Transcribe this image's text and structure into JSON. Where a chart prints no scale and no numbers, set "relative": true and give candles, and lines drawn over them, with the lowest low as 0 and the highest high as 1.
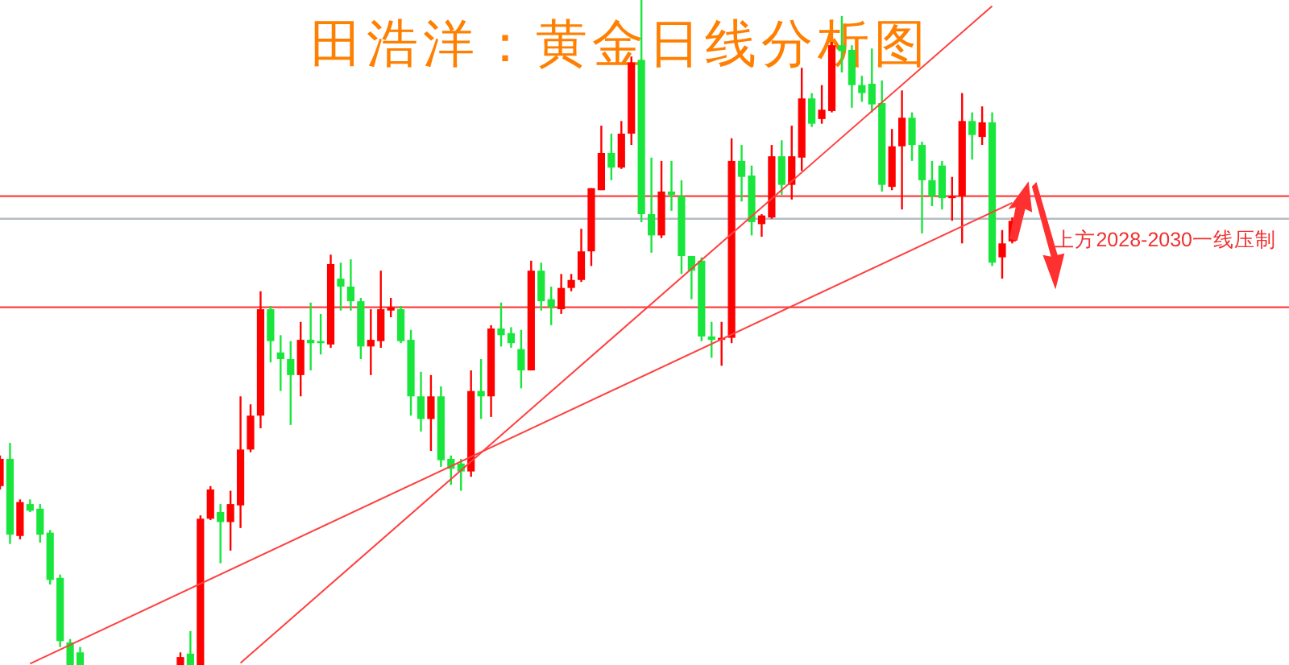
{
  "chart_data": {
    "type": "candlestick",
    "title": "田浩洋：黄金日线分析图",
    "relative": true,
    "categories": [
      null,
      null,
      null,
      null,
      null,
      null,
      null,
      null,
      null,
      null,
      null,
      null,
      null,
      null,
      null,
      null,
      null,
      null,
      null,
      null,
      null,
      null,
      null,
      null,
      null,
      null,
      null,
      null,
      null,
      null,
      null,
      null,
      null,
      null,
      null,
      null,
      null,
      null,
      null,
      null,
      null,
      null,
      null,
      null,
      null,
      null,
      null,
      null,
      null,
      null,
      null,
      null,
      null,
      null,
      null,
      null,
      null,
      null,
      null,
      null,
      null,
      null,
      null,
      null,
      null,
      null,
      null,
      null,
      null,
      null,
      null,
      null,
      null,
      null,
      null,
      null,
      null,
      null,
      null,
      null,
      null,
      null,
      null,
      null,
      null,
      null,
      null,
      null,
      null,
      null,
      null,
      null,
      null,
      null,
      null,
      null,
      null,
      null,
      null,
      null,
      null,
      null
    ],
    "ohlc": [
      [
        0.269,
        0.315,
        0.264,
        0.31
      ],
      [
        0.31,
        0.334,
        0.182,
        0.196
      ],
      [
        0.194,
        0.249,
        0.189,
        0.245
      ],
      [
        0.242,
        0.249,
        0.23,
        0.232
      ],
      [
        0.235,
        0.242,
        0.184,
        0.196
      ],
      [
        0.199,
        0.203,
        0.121,
        0.128
      ],
      [
        0.131,
        0.136,
        0.027,
        0.036
      ],
      [
        0.034,
        0.039,
        0,
        0
      ],
      [
        0.019,
        0.027,
        0,
        0
      ],
      null,
      null,
      null,
      null,
      null,
      null,
      null,
      null,
      null,
      [
        0,
        0.019,
        0,
        0.012
      ],
      [
        0.017,
        0.051,
        0,
        0
      ],
      [
        0,
        0.225,
        0,
        0.22
      ],
      [
        0.22,
        0.269,
        0.218,
        0.264
      ],
      [
        0.23,
        0.242,
        0.153,
        0.215
      ],
      [
        0.215,
        0.262,
        0.172,
        0.242
      ],
      [
        0.24,
        0.404,
        0.206,
        0.324
      ],
      [
        0.324,
        0.392,
        0.32,
        0.375
      ],
      [
        0.375,
        0.562,
        0.356,
        0.535
      ],
      [
        0.535,
        0.54,
        0.455,
        0.487
      ],
      [
        0.47,
        0.496,
        0.412,
        0.46
      ],
      [
        0.46,
        0.487,
        0.361,
        0.436
      ],
      [
        0.436,
        0.516,
        0.404,
        0.489
      ],
      [
        0.489,
        0.545,
        0.443,
        0.484
      ],
      [
        0.487,
        0.528,
        0.467,
        0.484
      ],
      [
        0.482,
        0.617,
        0.477,
        0.603
      ],
      [
        0.581,
        0.605,
        0.533,
        0.569
      ],
      [
        0.569,
        0.61,
        0.533,
        0.547
      ],
      [
        0.547,
        0.552,
        0.46,
        0.479
      ],
      [
        0.479,
        0.535,
        0.436,
        0.489
      ],
      [
        0.487,
        0.593,
        0.477,
        0.535
      ],
      [
        0.533,
        0.552,
        0.523,
        0.538
      ],
      [
        0.535,
        0.54,
        0.484,
        0.487
      ],
      [
        0.489,
        0.504,
        0.375,
        0.404
      ],
      [
        0.404,
        0.441,
        0.351,
        0.37
      ],
      [
        0.37,
        0.436,
        0.322,
        0.404
      ],
      [
        0.404,
        0.419,
        0.298,
        0.308
      ],
      [
        0.31,
        0.315,
        0.271,
        0.295
      ],
      [
        0.303,
        0.31,
        0.262,
        0.291
      ],
      [
        0.291,
        0.443,
        0.283,
        0.412
      ],
      [
        0.412,
        0.46,
        0.37,
        0.404
      ],
      [
        0.404,
        0.511,
        0.373,
        0.506
      ],
      [
        0.506,
        0.545,
        0.479,
        0.496
      ],
      [
        0.499,
        0.508,
        0.477,
        0.484
      ],
      [
        0.475,
        0.504,
        0.416,
        0.443
      ],
      [
        0.443,
        0.608,
        0.443,
        0.593
      ],
      [
        0.593,
        0.605,
        0.533,
        0.547
      ],
      [
        0.55,
        0.569,
        0.511,
        0.538
      ],
      [
        0.535,
        0.588,
        0.528,
        0.567
      ],
      [
        0.567,
        0.588,
        0.562,
        0.579
      ],
      [
        0.579,
        0.656,
        0.576,
        0.622
      ],
      [
        0.622,
        0.717,
        0.6,
        0.717
      ],
      [
        0.714,
        0.811,
        0.714,
        0.77
      ],
      [
        0.77,
        0.799,
        0.729,
        0.748
      ],
      [
        0.748,
        0.818,
        0.746,
        0.799
      ],
      [
        0.799,
        0.915,
        0.782,
        0.906
      ],
      [
        0.91,
        1,
        0.666,
        0.678
      ],
      [
        0.678,
        0.763,
        0.62,
        0.646
      ],
      [
        0.646,
        0.758,
        0.642,
        0.712
      ],
      [
        0.712,
        0.758,
        0.683,
        0.707
      ],
      [
        0.705,
        0.729,
        0.588,
        0.615
      ],
      [
        0.615,
        0.615,
        0.55,
        0.593
      ],
      [
        0.608,
        0.613,
        0.487,
        0.494
      ],
      [
        0.494,
        0.516,
        0.462,
        0.489
      ],
      [
        0.489,
        0.516,
        0.45,
        0.492
      ],
      [
        0.492,
        0.792,
        0.484,
        0.758
      ],
      [
        0.758,
        0.782,
        0.697,
        0.734
      ],
      [
        0.736,
        0.751,
        0.646,
        0.666
      ],
      [
        0.663,
        0.678,
        0.644,
        0.676
      ],
      [
        0.673,
        0.782,
        0.671,
        0.765
      ],
      [
        0.765,
        0.789,
        0.707,
        0.722
      ],
      [
        0.722,
        0.811,
        0.7,
        0.765
      ],
      [
        0.763,
        0.898,
        0.743,
        0.852
      ],
      [
        0.852,
        0.86,
        0.809,
        0.814
      ],
      [
        0.821,
        0.872,
        0.814,
        0.835
      ],
      [
        0.833,
        0.937,
        0.831,
        0.932
      ],
      [
        0.932,
        0.976,
        0.891,
        0.923
      ],
      [
        0.925,
        0.932,
        0.838,
        0.872
      ],
      [
        0.872,
        0.886,
        0.847,
        0.86
      ],
      [
        0.874,
        0.927,
        0.831,
        0.843
      ],
      [
        0.845,
        0.879,
        0.712,
        0.722
      ],
      [
        0.719,
        0.806,
        0.714,
        0.78
      ],
      [
        0.78,
        0.864,
        0.685,
        0.823
      ],
      [
        0.823,
        0.831,
        0.758,
        0.782
      ],
      [
        0.782,
        0.787,
        0.649,
        0.729
      ],
      [
        0.729,
        0.758,
        0.69,
        0.705
      ],
      [
        0.751,
        0.758,
        0.685,
        0.702
      ],
      [
        0.702,
        0.734,
        0.668,
        0.705
      ],
      [
        0.705,
        0.86,
        0.634,
        0.818
      ],
      [
        0.818,
        0.831,
        0.76,
        0.797
      ],
      [
        0.794,
        0.84,
        0.782,
        0.816
      ],
      [
        0.816,
        0.831,
        0.6,
        0.605
      ],
      [
        0.613,
        0.654,
        0.581,
        0.634
      ],
      [
        0.637,
        0.673,
        0.634,
        0.668
      ]
    ],
    "colors": [
      "#ff0000",
      "#19e63c",
      "#ff0000",
      "#19e63c",
      "#19e63c",
      "#19e63c",
      "#19e63c",
      "#19e63c",
      "#19e63c",
      null,
      null,
      null,
      null,
      null,
      null,
      null,
      null,
      null,
      "#ff0000",
      "#19e63c",
      "#ff0000",
      "#ff0000",
      "#19e63c",
      "#ff0000",
      "#ff0000",
      "#ff0000",
      "#ff0000",
      "#19e63c",
      "#19e63c",
      "#19e63c",
      "#ff0000",
      "#19e63c",
      "#19e63c",
      "#ff0000",
      "#19e63c",
      "#19e63c",
      "#19e63c",
      "#ff0000",
      "#ff0000",
      "#ff0000",
      "#19e63c",
      "#19e63c",
      "#19e63c",
      "#ff0000",
      "#19e63c",
      "#19e63c",
      "#19e63c",
      "#ff0000",
      "#19e63c",
      "#ff0000",
      "#19e63c",
      "#19e63c",
      "#19e63c",
      "#ff0000",
      "#19e63c",
      "#19e63c",
      "#ff0000",
      "#ff0000",
      "#ff0000",
      "#ff0000",
      "#ff0000",
      "#19e63c",
      "#ff0000",
      "#ff0000",
      "#19e63c",
      "#19e63c",
      "#ff0000",
      "#19e63c",
      "#19e63c",
      "#19e63c",
      "#19e63c",
      "#19e63c",
      "#ff0000",
      "#ff0000",
      "#19e63c",
      "#19e63c",
      "#ff0000",
      "#ff0000",
      "#19e63c",
      "#ff0000",
      "#ff0000",
      "#19e63c",
      "#ff0000",
      "#ff0000",
      "#19e63c",
      "#19e63c",
      "#19e63c",
      "#19e63c",
      "#19e63c",
      "#ff0000",
      "#ff0000",
      "#19e63c",
      "#19e63c",
      "#19e63c",
      "#19e63c",
      "#ff0000",
      "#ff0000",
      "#19e63c",
      "#ff0000",
      "#19e63c",
      "#ff0000",
      "#ff0000"
    ],
    "series": [
      {
        "type": "line",
        "color": "#ff4040",
        "values": [
          null,
          null,
          null,
          null,
          null,
          null,
          null,
          null,
          null,
          null,
          null,
          null,
          null,
          null,
          null,
          null,
          null,
          null,
          null,
          null,
          null,
          null,
          null,
          null,
          0.003,
          null,
          null,
          null,
          null,
          null,
          null,
          null,
          null,
          null,
          null,
          null,
          null,
          null,
          null,
          null,
          null,
          null,
          null,
          null,
          null,
          null,
          null,
          null,
          null,
          null,
          null,
          null,
          null,
          null,
          null,
          null,
          null,
          null,
          null,
          null,
          null,
          null,
          null,
          null,
          null,
          null,
          null,
          null,
          null,
          null,
          null,
          null,
          null,
          null,
          null,
          null,
          null,
          null,
          null,
          null,
          null,
          null,
          null,
          null,
          null,
          null,
          null,
          null,
          null,
          null,
          null,
          null,
          null,
          null,
          null,
          null,
          null,
          null,
          null,
          0.991,
          null,
          null
        ]
      },
      {
        "type": "line",
        "color": "#ff4040",
        "values": [
          null,
          null,
          null,
          0.002,
          null,
          null,
          null,
          null,
          null,
          null,
          null,
          null,
          null,
          null,
          null,
          null,
          null,
          null,
          null,
          null,
          null,
          null,
          null,
          null,
          null,
          null,
          null,
          null,
          null,
          null,
          null,
          null,
          null,
          null,
          null,
          null,
          null,
          null,
          null,
          null,
          null,
          null,
          null,
          null,
          null,
          null,
          null,
          null,
          null,
          null,
          null,
          null,
          null,
          null,
          null,
          null,
          null,
          null,
          null,
          null,
          null,
          null,
          null,
          null,
          null,
          null,
          null,
          null,
          null,
          null,
          null,
          null,
          null,
          null,
          null,
          null,
          null,
          null,
          null,
          null,
          null,
          null,
          null,
          null,
          null,
          null,
          null,
          null,
          null,
          null,
          null,
          null,
          null,
          null,
          null,
          null,
          null,
          null,
          null,
          null,
          null,
          0.695
        ]
      }
    ],
    "ref_lines": [
      {
        "axis": "y",
        "value": 0.705,
        "color": "#ff4040"
      },
      {
        "axis": "y",
        "value": 0.671,
        "color": "#b4bcc4"
      },
      {
        "axis": "y",
        "value": 0.538,
        "color": "#ff4040"
      }
    ],
    "annotations": [
      "上方2028-2030一线压制"
    ]
  }
}
